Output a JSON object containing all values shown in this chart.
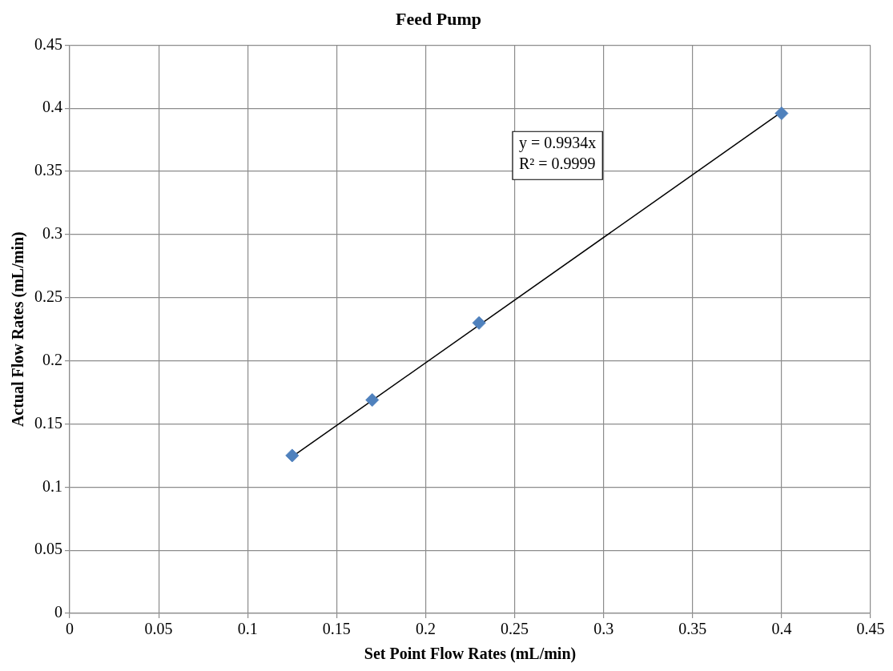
{
  "chart_data": {
    "type": "scatter",
    "title": "Feed Pump",
    "xlabel": "Set Point Flow Rates (mL/min)",
    "ylabel": "Actual Flow Rates (mL/min)",
    "series": [
      {
        "type": "scatter",
        "color": "#4f81bd",
        "marker": "diamond",
        "x": [
          0.125,
          0.17,
          0.23,
          0.4
        ],
        "values": [
          0.125,
          0.169,
          0.23,
          0.396
        ]
      },
      {
        "type": "line",
        "color": "#000000",
        "marker": "none",
        "line_style": "solid",
        "x": [
          0.125,
          0.4
        ],
        "values": [
          0.124,
          0.397
        ]
      }
    ],
    "xlim": [
      0,
      0.45
    ],
    "xticks": [
      0,
      0.05,
      0.1,
      0.15,
      0.2,
      0.25,
      0.3,
      0.35,
      0.4,
      0.45
    ],
    "ylim": [
      0,
      0.45
    ],
    "yticks": [
      0,
      0.05,
      0.1,
      0.15,
      0.2,
      0.25,
      0.3,
      0.35,
      0.4,
      0.45
    ],
    "annotations": [
      "y = 0.9934x",
      "R² = 0.9999"
    ],
    "grid": true,
    "legend": false
  }
}
